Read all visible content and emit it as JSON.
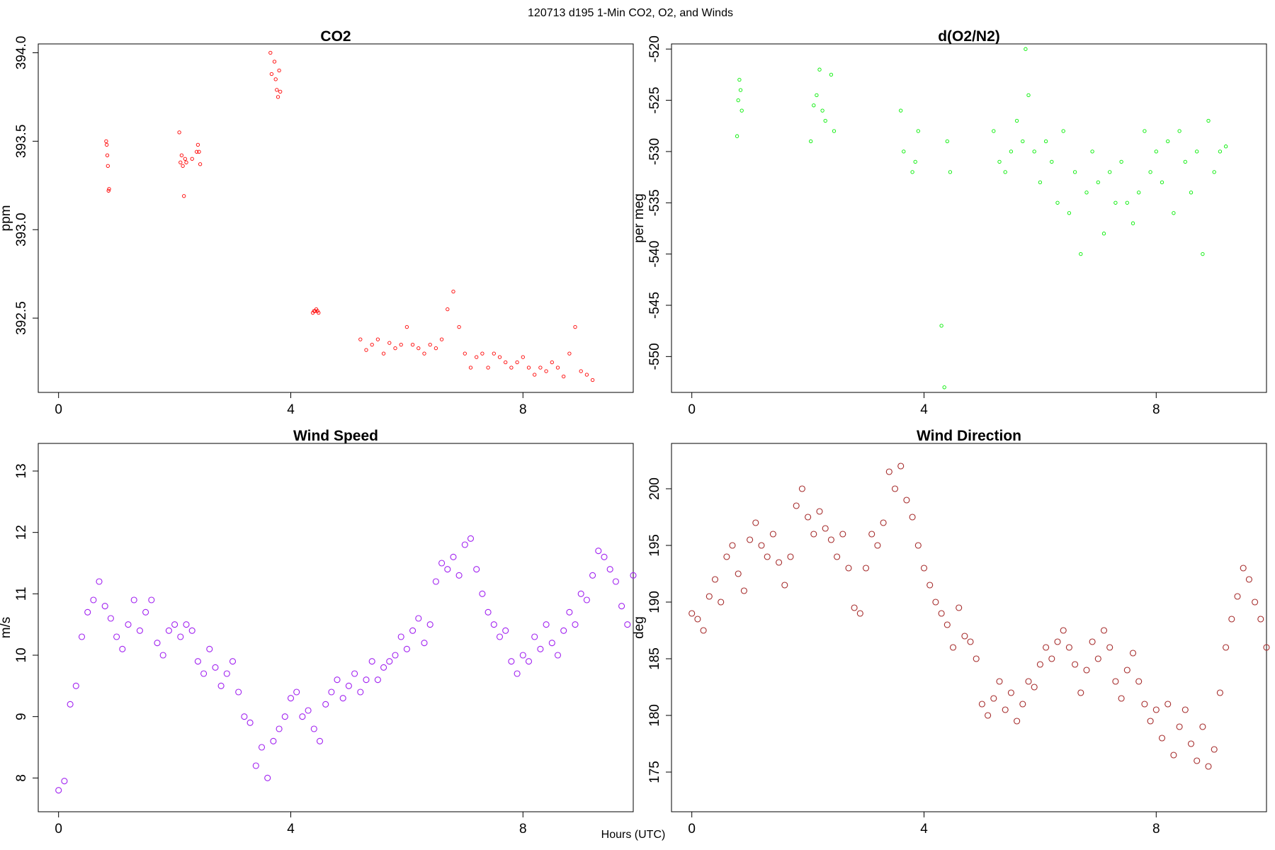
{
  "figure": {
    "title": "120713   d195   1-Min CO2, O2, and Winds",
    "xlabel": "Hours (UTC)"
  },
  "chart_data": [
    {
      "type": "scatter",
      "title": "CO2",
      "xlabel": "Hours (UTC)",
      "ylabel": "ppm",
      "xlim": [
        -0.35,
        9.9
      ],
      "ylim": [
        392.08,
        394.05
      ],
      "xticks": [
        "0",
        "4",
        "8"
      ],
      "xtick_values": [
        0,
        4,
        8
      ],
      "yticks": [
        "392.5",
        "393.0",
        "393.5",
        "394.0"
      ],
      "ytick_values": [
        392.5,
        393.0,
        393.5,
        394.0
      ],
      "color": "#ff0000",
      "marker_size": "small",
      "series": [
        {
          "name": "CO2",
          "x": [
            0.82,
            0.83,
            0.84,
            0.85,
            0.86,
            0.87,
            2.08,
            2.1,
            2.12,
            2.14,
            2.16,
            2.18,
            2.2,
            2.3,
            2.38,
            2.4,
            2.42,
            2.44,
            3.65,
            3.67,
            3.72,
            3.74,
            3.76,
            3.78,
            3.8,
            3.82,
            4.38,
            4.4,
            4.42,
            4.44,
            4.46,
            4.48,
            5.2,
            5.3,
            5.4,
            5.5,
            5.6,
            5.7,
            5.8,
            5.9,
            6.0,
            6.1,
            6.2,
            6.3,
            6.4,
            6.5,
            6.6,
            6.7,
            6.8,
            6.9,
            7.0,
            7.1,
            7.2,
            7.3,
            7.4,
            7.5,
            7.6,
            7.7,
            7.8,
            7.9,
            8.0,
            8.1,
            8.2,
            8.3,
            8.4,
            8.5,
            8.6,
            8.7,
            8.8,
            8.9,
            9.0,
            9.1,
            9.2
          ],
          "y": [
            393.5,
            393.48,
            393.42,
            393.36,
            393.22,
            393.23,
            393.55,
            393.38,
            393.42,
            393.36,
            393.19,
            393.4,
            393.38,
            393.4,
            393.44,
            393.48,
            393.44,
            393.37,
            394.0,
            393.88,
            393.95,
            393.85,
            393.79,
            393.75,
            393.9,
            393.78,
            392.53,
            392.54,
            392.54,
            392.55,
            392.54,
            392.53,
            392.38,
            392.32,
            392.35,
            392.38,
            392.3,
            392.36,
            392.33,
            392.35,
            392.45,
            392.35,
            392.33,
            392.3,
            392.35,
            392.33,
            392.38,
            392.55,
            392.65,
            392.45,
            392.3,
            392.22,
            392.28,
            392.3,
            392.22,
            392.3,
            392.28,
            392.25,
            392.22,
            392.25,
            392.28,
            392.22,
            392.18,
            392.22,
            392.2,
            392.25,
            392.22,
            392.17,
            392.3,
            392.45,
            392.2,
            392.18,
            392.15
          ]
        }
      ]
    },
    {
      "type": "scatter",
      "title": "d(O2/N2)",
      "xlabel": "Hours (UTC)",
      "ylabel": "per meg",
      "xlim": [
        -0.35,
        9.9
      ],
      "ylim": [
        -553.5,
        -519.5
      ],
      "xticks": [
        "0",
        "4",
        "8"
      ],
      "xtick_values": [
        0,
        4,
        8
      ],
      "yticks": [
        "-550",
        "-545",
        "-540",
        "-535",
        "-530",
        "-525",
        "-520"
      ],
      "ytick_values": [
        -550,
        -545,
        -540,
        -535,
        -530,
        -525,
        -520
      ],
      "color": "#00ee00",
      "marker_size": "small",
      "series": [
        {
          "name": "d(O2/N2)",
          "x": [
            0.78,
            0.8,
            0.82,
            0.84,
            0.86,
            2.05,
            2.1,
            2.15,
            2.2,
            2.25,
            2.3,
            2.4,
            2.45,
            3.6,
            3.65,
            3.8,
            3.85,
            3.9,
            4.3,
            4.35,
            4.4,
            4.45,
            5.2,
            5.3,
            5.4,
            5.5,
            5.6,
            5.7,
            5.75,
            5.8,
            5.9,
            6.0,
            6.1,
            6.2,
            6.3,
            6.4,
            6.5,
            6.6,
            6.7,
            6.8,
            6.9,
            7.0,
            7.1,
            7.2,
            7.3,
            7.4,
            7.5,
            7.6,
            7.7,
            7.8,
            7.9,
            8.0,
            8.1,
            8.2,
            8.3,
            8.4,
            8.5,
            8.6,
            8.7,
            8.8,
            8.9,
            9.0,
            9.1,
            9.2
          ],
          "y": [
            -528.5,
            -525,
            -523,
            -524,
            -526,
            -529,
            -525.5,
            -524.5,
            -522,
            -526,
            -527,
            -522.5,
            -528,
            -526,
            -530,
            -532,
            -531,
            -528,
            -547,
            -553,
            -529,
            -532,
            -528,
            -531,
            -532,
            -530,
            -527,
            -529,
            -520,
            -524.5,
            -530,
            -533,
            -529,
            -531,
            -535,
            -528,
            -536,
            -532,
            -540,
            -534,
            -530,
            -533,
            -538,
            -532,
            -535,
            -531,
            -535,
            -537,
            -534,
            -528,
            -532,
            -530,
            -533,
            -529,
            -536,
            -528,
            -531,
            -534,
            -530,
            -540,
            -527,
            -532,
            -530,
            -529.5
          ]
        }
      ]
    },
    {
      "type": "scatter",
      "title": "Wind Speed",
      "xlabel": "Hours (UTC)",
      "ylabel": "m/s",
      "xlim": [
        -0.35,
        9.9
      ],
      "ylim": [
        7.45,
        13.45
      ],
      "xticks": [
        "0",
        "4",
        "8"
      ],
      "xtick_values": [
        0,
        4,
        8
      ],
      "yticks": [
        "8",
        "9",
        "10",
        "11",
        "12",
        "13"
      ],
      "ytick_values": [
        8,
        9,
        10,
        11,
        12,
        13
      ],
      "color": "#a020f0",
      "marker_size": "large",
      "series": [
        {
          "name": "Wind Speed",
          "x": [
            0.0,
            0.1,
            0.2,
            0.3,
            0.4,
            0.5,
            0.6,
            0.7,
            0.8,
            0.9,
            1.0,
            1.1,
            1.2,
            1.3,
            1.4,
            1.5,
            1.6,
            1.7,
            1.8,
            1.9,
            2.0,
            2.1,
            2.2,
            2.3,
            2.4,
            2.5,
            2.6,
            2.7,
            2.8,
            2.9,
            3.0,
            3.1,
            3.2,
            3.3,
            3.4,
            3.5,
            3.6,
            3.7,
            3.8,
            3.9,
            4.0,
            4.1,
            4.2,
            4.3,
            4.4,
            4.5,
            4.6,
            4.7,
            4.8,
            4.9,
            5.0,
            5.1,
            5.2,
            5.3,
            5.4,
            5.5,
            5.6,
            5.7,
            5.8,
            5.9,
            6.0,
            6.1,
            6.2,
            6.3,
            6.4,
            6.5,
            6.6,
            6.7,
            6.8,
            6.9,
            7.0,
            7.1,
            7.2,
            7.3,
            7.4,
            7.5,
            7.6,
            7.7,
            7.8,
            7.9,
            8.0,
            8.1,
            8.2,
            8.3,
            8.4,
            8.5,
            8.6,
            8.7,
            8.8,
            8.9,
            9.0,
            9.1,
            9.2,
            9.3,
            9.4,
            9.5,
            9.6,
            9.7,
            9.8,
            9.9
          ],
          "y": [
            7.8,
            7.95,
            9.2,
            9.5,
            10.3,
            10.7,
            10.9,
            11.2,
            10.8,
            10.6,
            10.3,
            10.1,
            10.5,
            10.9,
            10.4,
            10.7,
            10.9,
            10.2,
            10.0,
            10.4,
            10.5,
            10.3,
            10.5,
            10.4,
            9.9,
            9.7,
            10.1,
            9.8,
            9.5,
            9.7,
            9.9,
            9.4,
            9.0,
            8.9,
            8.2,
            8.5,
            8.0,
            8.6,
            8.8,
            9.0,
            9.3,
            9.4,
            9.0,
            9.1,
            8.8,
            8.6,
            9.2,
            9.4,
            9.6,
            9.3,
            9.5,
            9.7,
            9.4,
            9.6,
            9.9,
            9.6,
            9.8,
            9.9,
            10.0,
            10.3,
            10.1,
            10.4,
            10.6,
            10.2,
            10.5,
            11.2,
            11.5,
            11.4,
            11.6,
            11.3,
            11.8,
            11.9,
            11.4,
            11.0,
            10.7,
            10.5,
            10.3,
            10.4,
            9.9,
            9.7,
            10.0,
            9.9,
            10.3,
            10.1,
            10.5,
            10.2,
            10.0,
            10.4,
            10.7,
            10.5,
            11.0,
            10.9,
            11.3,
            11.7,
            11.6,
            11.4,
            11.2,
            10.8,
            10.5,
            11.3
          ]
        }
      ]
    },
    {
      "type": "scatter",
      "title": "Wind Direction",
      "xlabel": "Hours (UTC)",
      "ylabel": "deg",
      "xlim": [
        -0.35,
        9.9
      ],
      "ylim": [
        171.5,
        204.0
      ],
      "xticks": [
        "0",
        "4",
        "8"
      ],
      "xtick_values": [
        0,
        4,
        8
      ],
      "yticks": [
        "175",
        "180",
        "185",
        "190",
        "195",
        "200"
      ],
      "ytick_values": [
        175,
        180,
        185,
        190,
        195,
        200
      ],
      "color": "#a52a2a",
      "marker_size": "large",
      "series": [
        {
          "name": "Wind Direction",
          "x": [
            0.0,
            0.1,
            0.2,
            0.3,
            0.4,
            0.5,
            0.6,
            0.7,
            0.8,
            0.9,
            1.0,
            1.1,
            1.2,
            1.3,
            1.4,
            1.5,
            1.6,
            1.7,
            1.8,
            1.9,
            2.0,
            2.1,
            2.2,
            2.3,
            2.4,
            2.5,
            2.6,
            2.7,
            2.8,
            2.9,
            3.0,
            3.1,
            3.2,
            3.3,
            3.4,
            3.5,
            3.6,
            3.7,
            3.8,
            3.9,
            4.0,
            4.1,
            4.2,
            4.3,
            4.4,
            4.5,
            4.6,
            4.7,
            4.8,
            4.9,
            5.0,
            5.1,
            5.2,
            5.3,
            5.4,
            5.5,
            5.6,
            5.7,
            5.8,
            5.9,
            6.0,
            6.1,
            6.2,
            6.3,
            6.4,
            6.5,
            6.6,
            6.7,
            6.8,
            6.9,
            7.0,
            7.1,
            7.2,
            7.3,
            7.4,
            7.5,
            7.6,
            7.7,
            7.8,
            7.9,
            8.0,
            8.1,
            8.2,
            8.3,
            8.4,
            8.5,
            8.6,
            8.7,
            8.8,
            8.9,
            9.0,
            9.1,
            9.2,
            9.3,
            9.4,
            9.5,
            9.6,
            9.7,
            9.8,
            9.9
          ],
          "y": [
            189.0,
            188.5,
            187.5,
            190.5,
            192.0,
            190.0,
            194.0,
            195.0,
            192.5,
            191.0,
            195.5,
            197.0,
            195.0,
            194.0,
            196.0,
            193.5,
            191.5,
            194.0,
            198.5,
            200.0,
            197.5,
            196.0,
            198.0,
            196.5,
            195.5,
            194.0,
            196.0,
            193.0,
            189.5,
            189.0,
            193.0,
            196.0,
            195.0,
            197.0,
            201.5,
            200.0,
            202.0,
            199.0,
            197.5,
            195.0,
            193.0,
            191.5,
            190.0,
            189.0,
            188.0,
            186.0,
            189.5,
            187.0,
            186.5,
            185.0,
            181.0,
            180.0,
            181.5,
            183.0,
            180.5,
            182.0,
            179.5,
            181.0,
            183.0,
            182.5,
            184.5,
            186.0,
            185.0,
            186.5,
            187.5,
            186.0,
            184.5,
            182.0,
            184.0,
            186.5,
            185.0,
            187.5,
            186.0,
            183.0,
            181.5,
            184.0,
            185.5,
            183.0,
            181.0,
            179.5,
            180.5,
            178.0,
            181.0,
            176.5,
            179.0,
            180.5,
            177.5,
            176.0,
            179.0,
            175.5,
            177.0,
            182.0,
            186.0,
            188.5,
            190.5,
            193.0,
            192.0,
            190.0,
            188.5,
            186.0
          ]
        }
      ]
    }
  ]
}
